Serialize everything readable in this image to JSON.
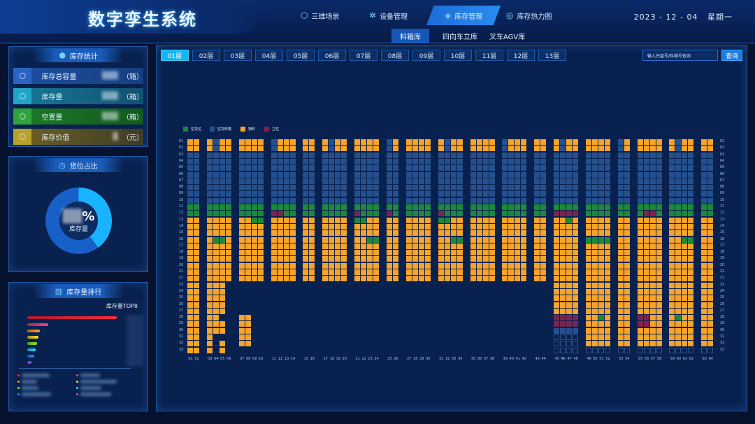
{
  "app": {
    "title": "数字孪生系统"
  },
  "nav": [
    {
      "label": "三维场景",
      "icon": "cube-icon"
    },
    {
      "label": "设备管理",
      "icon": "settings-icon"
    },
    {
      "label": "库存管理",
      "icon": "box-icon"
    },
    {
      "label": "库存热力图",
      "icon": "heatmap-icon"
    }
  ],
  "date": "2023 - 12 - 04",
  "weekday": "星期一",
  "subnav": [
    "料箱库",
    "四向车立库",
    "叉车AGV库"
  ],
  "stats": {
    "title": "库存统计",
    "items": [
      {
        "label": "库存总容量",
        "value": "",
        "unit": "（箱）",
        "color": "#1d4fa0"
      },
      {
        "label": "库存量",
        "value": "",
        "unit": "（箱）",
        "color": "#18799a"
      },
      {
        "label": "空置量",
        "value": "",
        "unit": "（箱）",
        "color": "#1d7a2a"
      },
      {
        "label": "库存价值",
        "value": "",
        "unit": "（元）",
        "color": "#8a7a24"
      }
    ]
  },
  "occupancy": {
    "title": "货位占比",
    "percent_label": "%",
    "sub_label": "库存量",
    "fraction": 0.4
  },
  "ranking": {
    "title": "库存量排行",
    "subtitle": "库存量TOP8"
  },
  "layers": [
    "01层",
    "02层",
    "03层",
    "04层",
    "05层",
    "06层",
    "07层",
    "08层",
    "09层",
    "10层",
    "11层",
    "12层",
    "13层"
  ],
  "search": {
    "placeholder": "输入托盘号/料箱号查询",
    "button": "查询"
  },
  "legend": [
    {
      "label": "空货位",
      "color": "#1c8a3a"
    },
    {
      "label": "空货料箱",
      "color": "#24508f"
    },
    {
      "label": "物料",
      "color": "#f6a42c"
    },
    {
      "label": "立柱",
      "color": "#7a2450"
    }
  ],
  "rows": [
    "01",
    "02",
    "03",
    "04",
    "05",
    "06",
    "07",
    "08",
    "09",
    "10",
    "11",
    "12",
    "13",
    "14",
    "15",
    "16",
    "17",
    "18",
    "19",
    "20",
    "21",
    "22",
    "23",
    "24",
    "25",
    "26",
    "27",
    "28",
    "29",
    "30",
    "31",
    "32",
    "33"
  ],
  "columns": [
    "01",
    "02",
    "03",
    "04",
    "05",
    "06",
    "07",
    "08",
    "09",
    "10",
    "11",
    "12",
    "13",
    "14",
    "15",
    "16",
    "17",
    "18",
    "19",
    "20",
    "21",
    "22",
    "23",
    "24",
    "25",
    "26",
    "27",
    "28",
    "29",
    "30",
    "31",
    "32",
    "33",
    "34",
    "35",
    "36",
    "37",
    "38",
    "39",
    "40",
    "41",
    "42",
    "43",
    "44",
    "45",
    "46",
    "47",
    "48",
    "49",
    "50",
    "51",
    "52",
    "53",
    "54",
    "55",
    "56",
    "57",
    "58",
    "59",
    "60",
    "61",
    "62",
    "63",
    "64"
  ],
  "column_groups": [
    2,
    4,
    4,
    4,
    2,
    4,
    4,
    2,
    4,
    4,
    4,
    4,
    2,
    4,
    4,
    2,
    4,
    4,
    2
  ],
  "icons": {
    "stats": "chart-icon",
    "occupancy": "clock-icon",
    "ranking": "bar-chart-icon"
  }
}
